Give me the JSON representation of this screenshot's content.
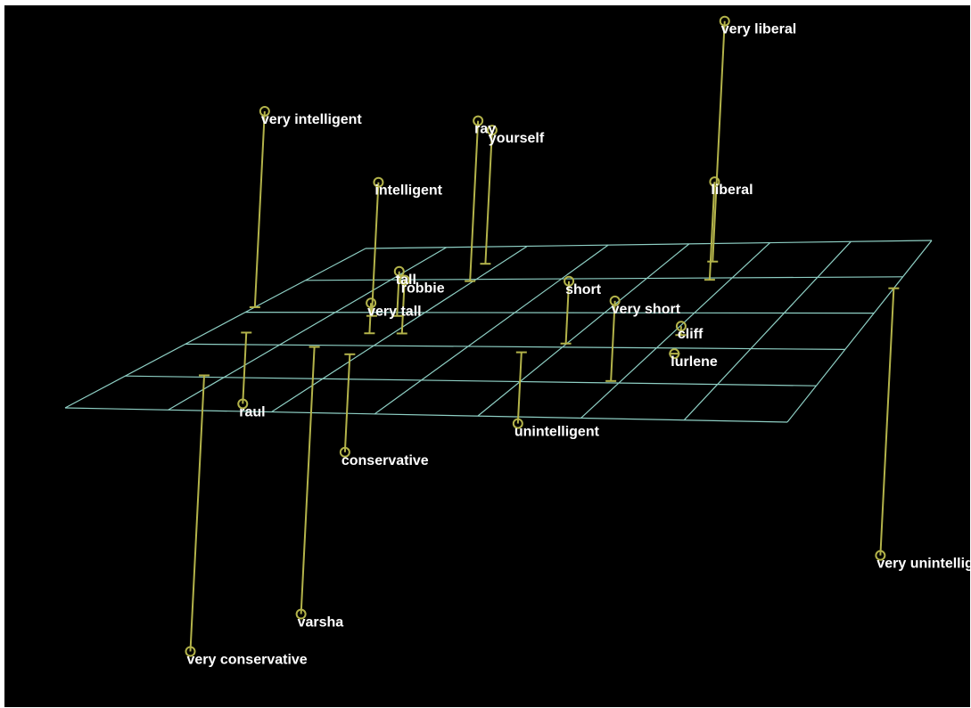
{
  "chart_data": {
    "type": "scatter",
    "projection": "3d",
    "title": "",
    "grid": true,
    "grid_cells": [
      7,
      5
    ],
    "colors": {
      "background": "#000000",
      "grid": "#8ecfc4",
      "stem": "#b3b34a",
      "label": "#ffffff"
    },
    "points": [
      {
        "label": "very liberal",
        "x": 0.65,
        "y": 0.1,
        "z": 1.35
      },
      {
        "label": "ray",
        "x": 0.28,
        "y": 0.0,
        "z": 0.9
      },
      {
        "label": "very intelligent",
        "x": 0.0,
        "y": -0.15,
        "z": 1.1
      },
      {
        "label": "yourself",
        "x": 0.26,
        "y": 0.1,
        "z": 0.75
      },
      {
        "label": "liberal",
        "x": 0.68,
        "y": 0.0,
        "z": 0.55
      },
      {
        "label": "intelligent",
        "x": 0.21,
        "y": -0.2,
        "z": 0.75
      },
      {
        "label": "short",
        "x": 0.57,
        "y": -0.35,
        "z": 0.35
      },
      {
        "label": "tall",
        "x": 0.25,
        "y": -0.2,
        "z": 0.25
      },
      {
        "label": "robbie",
        "x": 0.3,
        "y": -0.3,
        "z": 0.3
      },
      {
        "label": "very tall",
        "x": 0.25,
        "y": -0.3,
        "z": 0.17
      },
      {
        "label": "very short",
        "x": 0.7,
        "y": -0.55,
        "z": 0.45
      },
      {
        "label": "cliff",
        "x": 0.73,
        "y": -0.3,
        "z": 0.05
      },
      {
        "label": "lurlene",
        "x": 0.75,
        "y": -0.4,
        "z": 0.0
      },
      {
        "label": "raul",
        "x": 0.06,
        "y": -0.3,
        "z": -0.4
      },
      {
        "label": "unintelligent",
        "x": 0.52,
        "y": -0.4,
        "z": -0.4
      },
      {
        "label": "conservative",
        "x": 0.27,
        "y": -0.42,
        "z": -0.55
      },
      {
        "label": "very unintelligent",
        "x": 1.0,
        "y": -0.05,
        "z": -1.5
      },
      {
        "label": "varsha",
        "x": 0.2,
        "y": -0.38,
        "z": -1.5
      },
      {
        "label": "very conservative",
        "x": 0.11,
        "y": -0.55,
        "z": -1.55
      }
    ]
  }
}
